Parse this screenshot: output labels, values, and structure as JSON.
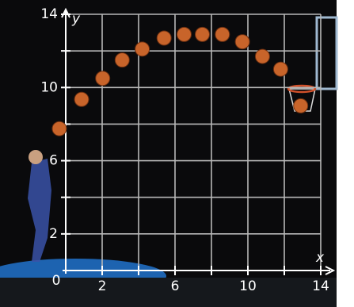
{
  "chart_data": {
    "type": "scatter",
    "x": [
      -0.35,
      0.87,
      2.03,
      3.1,
      4.2,
      5.4,
      6.5,
      7.5,
      8.6,
      9.7,
      10.8,
      11.8,
      12.9
    ],
    "values": [
      7.75,
      9.35,
      10.5,
      11.5,
      12.1,
      12.7,
      12.9,
      12.9,
      12.9,
      12.5,
      11.7,
      11.0,
      9.0
    ],
    "color": "#c8642a",
    "xlabel": "x",
    "ylabel": "y",
    "xlim": [
      0,
      14
    ],
    "ylim": [
      0,
      14
    ],
    "xticks": [
      0,
      2,
      6,
      10,
      14
    ],
    "yticks": [
      2,
      6,
      10,
      14
    ],
    "xminor": [
      4,
      8,
      12
    ],
    "yminor": [
      4,
      8,
      12
    ],
    "grid": true
  }
}
